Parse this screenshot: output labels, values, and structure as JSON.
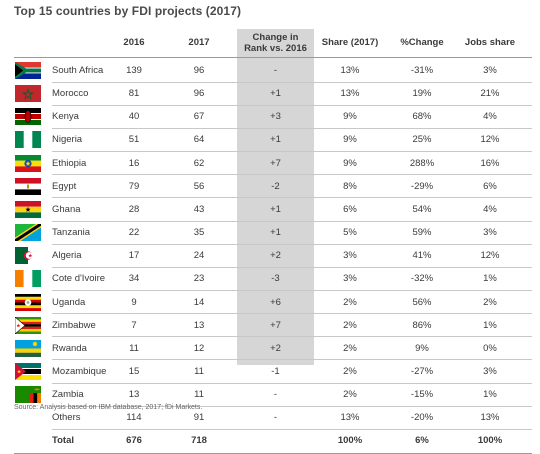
{
  "title": "Top 15 countries by FDI projects (2017)",
  "headers": {
    "y2016": "2016",
    "y2017": "2017",
    "change_l1": "Change in",
    "change_l2": "Rank vs. 2016",
    "share": "Share (2017)",
    "pct": "%Change",
    "jobs": "Jobs share"
  },
  "rows": [
    {
      "country": "South Africa",
      "flag": "south-africa-flag-icon",
      "y2016": "139",
      "y2017": "96",
      "change": "-",
      "share": "13%",
      "pct": "-31%",
      "jobs": "3%"
    },
    {
      "country": "Morocco",
      "flag": "morocco-flag-icon",
      "y2016": "81",
      "y2017": "96",
      "change": "+1",
      "share": "13%",
      "pct": "19%",
      "jobs": "21%"
    },
    {
      "country": "Kenya",
      "flag": "kenya-flag-icon",
      "y2016": "40",
      "y2017": "67",
      "change": "+3",
      "share": "9%",
      "pct": "68%",
      "jobs": "4%"
    },
    {
      "country": "Nigeria",
      "flag": "nigeria-flag-icon",
      "y2016": "51",
      "y2017": "64",
      "change": "+1",
      "share": "9%",
      "pct": "25%",
      "jobs": "12%"
    },
    {
      "country": "Ethiopia",
      "flag": "ethiopia-flag-icon",
      "y2016": "16",
      "y2017": "62",
      "change": "+7",
      "share": "9%",
      "pct": "288%",
      "jobs": "16%"
    },
    {
      "country": "Egypt",
      "flag": "egypt-flag-icon",
      "y2016": "79",
      "y2017": "56",
      "change": "-2",
      "share": "8%",
      "pct": "-29%",
      "jobs": "6%"
    },
    {
      "country": "Ghana",
      "flag": "ghana-flag-icon",
      "y2016": "28",
      "y2017": "43",
      "change": "+1",
      "share": "6%",
      "pct": "54%",
      "jobs": "4%"
    },
    {
      "country": "Tanzania",
      "flag": "tanzania-flag-icon",
      "y2016": "22",
      "y2017": "35",
      "change": "+1",
      "share": "5%",
      "pct": "59%",
      "jobs": "3%"
    },
    {
      "country": "Algeria",
      "flag": "algeria-flag-icon",
      "y2016": "17",
      "y2017": "24",
      "change": "+2",
      "share": "3%",
      "pct": "41%",
      "jobs": "12%"
    },
    {
      "country": "Cote d'Ivoire",
      "flag": "cote-divoire-flag-icon",
      "y2016": "34",
      "y2017": "23",
      "change": "-3",
      "share": "3%",
      "pct": "-32%",
      "jobs": "1%"
    },
    {
      "country": "Uganda",
      "flag": "uganda-flag-icon",
      "y2016": "9",
      "y2017": "14",
      "change": "+6",
      "share": "2%",
      "pct": "56%",
      "jobs": "2%"
    },
    {
      "country": "Zimbabwe",
      "flag": "zimbabwe-flag-icon",
      "y2016": "7",
      "y2017": "13",
      "change": "+7",
      "share": "2%",
      "pct": "86%",
      "jobs": "1%"
    },
    {
      "country": "Rwanda",
      "flag": "rwanda-flag-icon",
      "y2016": "11",
      "y2017": "12",
      "change": "+2",
      "share": "2%",
      "pct": "9%",
      "jobs": "0%"
    },
    {
      "country": "Mozambique",
      "flag": "mozambique-flag-icon",
      "y2016": "15",
      "y2017": "11",
      "change": "-1",
      "share": "2%",
      "pct": "-27%",
      "jobs": "3%"
    },
    {
      "country": "Zambia",
      "flag": "zambia-flag-icon",
      "y2016": "13",
      "y2017": "11",
      "change": "-",
      "share": "2%",
      "pct": "-15%",
      "jobs": "1%"
    }
  ],
  "others": {
    "country": "Others",
    "y2016": "114",
    "y2017": "91",
    "change": "-",
    "share": "13%",
    "pct": "-20%",
    "jobs": "13%"
  },
  "total": {
    "country": "Total",
    "y2016": "676",
    "y2017": "718",
    "change": "",
    "share": "100%",
    "pct": "6%",
    "jobs": "100%"
  },
  "source": "Source: Analysis based on IBM database, 2017; fDi Markets."
}
